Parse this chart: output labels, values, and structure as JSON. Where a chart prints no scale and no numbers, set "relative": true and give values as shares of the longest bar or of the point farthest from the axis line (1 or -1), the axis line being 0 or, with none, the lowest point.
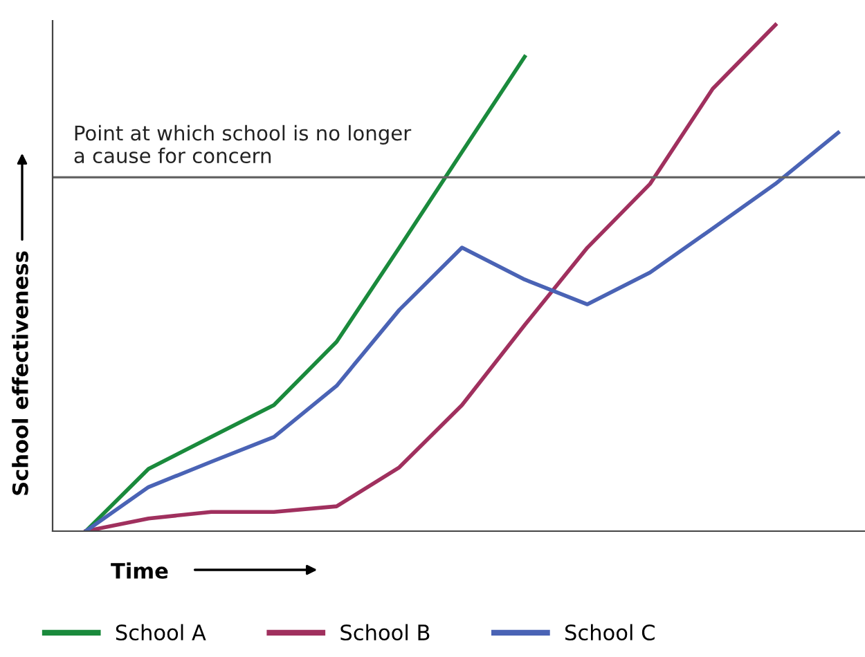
{
  "chart_data": {
    "type": "line",
    "relative": true,
    "xlabel": "Time",
    "ylabel": "School effectiveness",
    "categories": [
      null,
      null,
      null,
      null,
      null,
      null,
      null,
      null,
      null,
      null,
      null,
      null,
      null
    ],
    "series": [
      {
        "name": "School A",
        "color": "#1a8a3c",
        "values": [
          0,
          0.123,
          0.186,
          0.249,
          0.374,
          0.56,
          0.749,
          0.937,
          null,
          null,
          null,
          null,
          null
        ]
      },
      {
        "name": "School B",
        "color": "#a0305e",
        "values": [
          0,
          0.025,
          0.038,
          0.038,
          0.049,
          0.126,
          0.249,
          0.407,
          0.56,
          0.686,
          0.874,
          1,
          null
        ]
      },
      {
        "name": "School C",
        "color": "#4a63b5",
        "values": [
          0,
          0.087,
          0.137,
          0.186,
          0.287,
          0.437,
          0.56,
          0.497,
          0.448,
          0.511,
          0.598,
          0.686,
          0.787
        ]
      }
    ],
    "ref_lines": [
      {
        "axis": "y",
        "value": 0.699,
        "label": "Point at which school is no longer\na cause for concern",
        "color": "#666666"
      }
    ],
    "legend": "bottom",
    "marker": "none",
    "line_style": "solid"
  }
}
